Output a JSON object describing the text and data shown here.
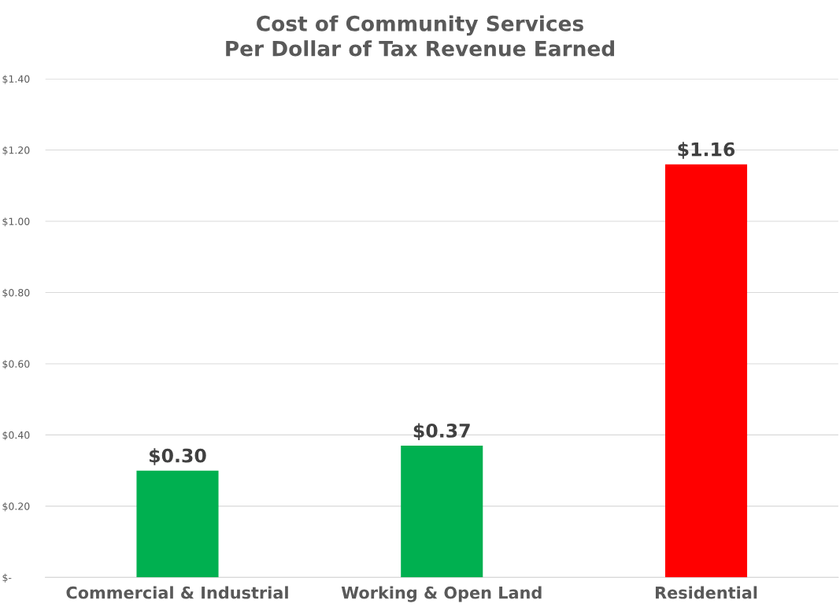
{
  "chart_data": {
    "type": "bar",
    "title": "Cost of Community Services\nPer Dollar of Tax Revenue Earned",
    "categories": [
      "Commercial & Industrial",
      "Working & Open Land",
      "Residential"
    ],
    "values": [
      0.3,
      0.37,
      1.16
    ],
    "colors": [
      "#00b050",
      "#00b050",
      "#ff0000"
    ],
    "value_labels": [
      "$0.30",
      "$0.37",
      "$1.16"
    ],
    "ylim": [
      0,
      1.4
    ],
    "yticks": [
      {
        "value": 0,
        "label": "$-"
      },
      {
        "value": 0.2,
        "label": "$0.20"
      },
      {
        "value": 0.4,
        "label": "$0.40"
      },
      {
        "value": 0.6,
        "label": "$0.60"
      },
      {
        "value": 0.8,
        "label": "$0.80"
      },
      {
        "value": 1.0,
        "label": "$1.00"
      },
      {
        "value": 1.2,
        "label": "$1.20"
      },
      {
        "value": 1.4,
        "label": "$1.40"
      }
    ],
    "grid": "y"
  }
}
